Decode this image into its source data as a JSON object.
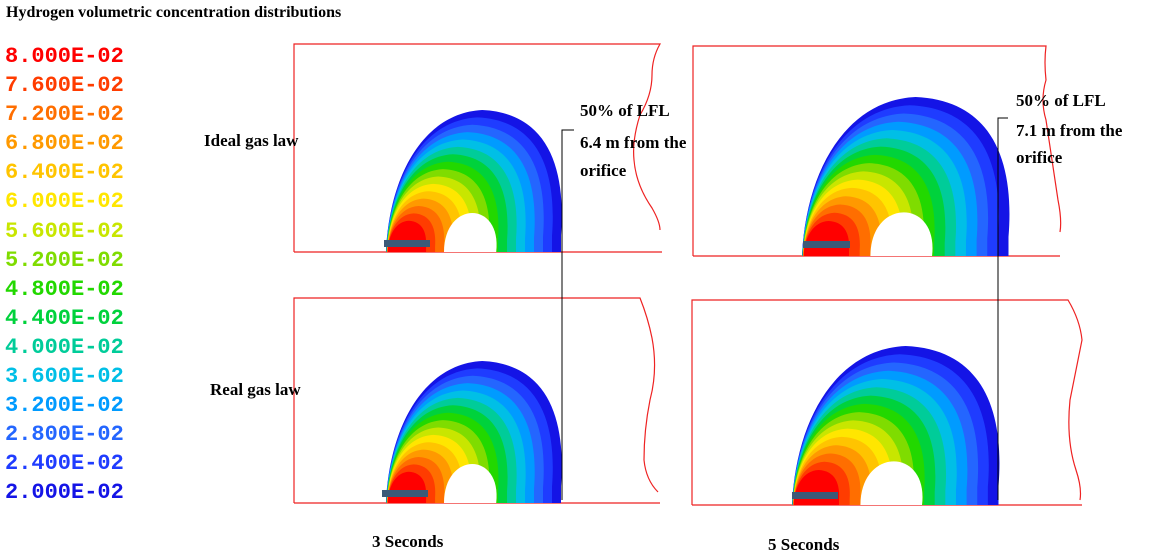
{
  "title": "Hydrogen volumetric concentration distributions",
  "legend": {
    "entries": [
      {
        "value": "8.000E-02",
        "color": "#ff0000"
      },
      {
        "value": "7.600E-02",
        "color": "#ff3c00"
      },
      {
        "value": "7.200E-02",
        "color": "#ff6e00"
      },
      {
        "value": "6.800E-02",
        "color": "#ff9900"
      },
      {
        "value": "6.400E-02",
        "color": "#ffc400"
      },
      {
        "value": "6.000E-02",
        "color": "#ffe600"
      },
      {
        "value": "5.600E-02",
        "color": "#c8e600"
      },
      {
        "value": "5.200E-02",
        "color": "#7fdc00"
      },
      {
        "value": "4.800E-02",
        "color": "#22d800"
      },
      {
        "value": "4.400E-02",
        "color": "#00d23c"
      },
      {
        "value": "4.000E-02",
        "color": "#00cc99"
      },
      {
        "value": "3.600E-02",
        "color": "#00bfe6"
      },
      {
        "value": "3.200E-02",
        "color": "#009bff"
      },
      {
        "value": "2.800E-02",
        "color": "#2466ff"
      },
      {
        "value": "2.400E-02",
        "color": "#1f3cff"
      },
      {
        "value": "2.000E-02",
        "color": "#1414e6"
      }
    ]
  },
  "rows": {
    "ideal_label": "Ideal gas law",
    "real_label": "Real gas law"
  },
  "columns": {
    "left_label": "3 Seconds",
    "right_label": "5 Seconds"
  },
  "annotations": {
    "left": {
      "line1": "50% of LFL",
      "line2": "6.4 m from the",
      "line3": "orifice"
    },
    "right": {
      "line1": "50% of LFL",
      "line2": "7.1 m from the",
      "line3": "orifice"
    }
  },
  "colors": {
    "domain_outline": "#ee2222",
    "orifice": "#3c5a78"
  }
}
